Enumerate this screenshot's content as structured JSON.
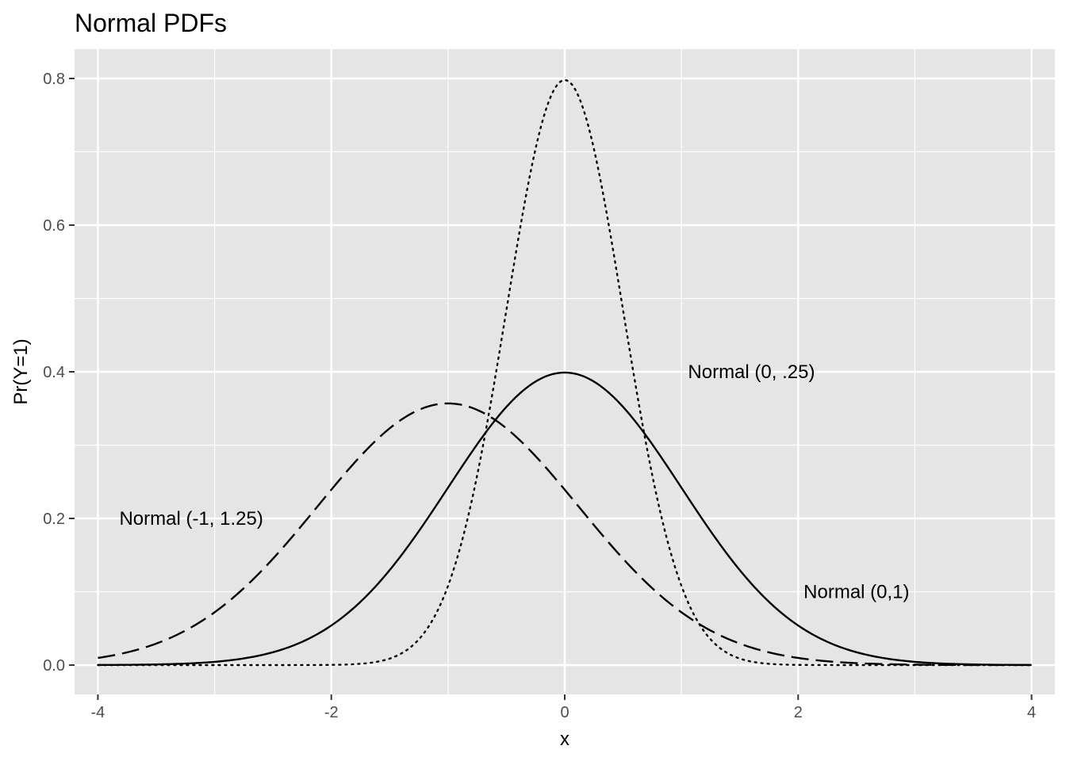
{
  "chart_data": {
    "type": "line",
    "title": "Normal PDFs",
    "xlabel": "x",
    "ylabel": "Pr(Y=1)",
    "xlim": [
      -4.2,
      4.2
    ],
    "ylim": [
      -0.04,
      0.84
    ],
    "x_ticks": [
      -4,
      -2,
      0,
      2,
      4
    ],
    "x_tick_labels": [
      "-4",
      "-2",
      "0",
      "2",
      "4"
    ],
    "y_ticks": [
      0.0,
      0.2,
      0.4,
      0.6,
      0.8
    ],
    "y_tick_labels": [
      "0.0",
      "0.2",
      "0.4",
      "0.6",
      "0.8"
    ],
    "grid": true,
    "legend": "none",
    "background": "#e5e5e5",
    "grid_color": "#ffffff",
    "line_color": "#000000",
    "series": [
      {
        "mean": 0,
        "sd": 1,
        "linetype": "solid",
        "label": "Normal (0,1)",
        "label_x": 2.5,
        "label_y": 0.1
      },
      {
        "mean": 0,
        "sd": 0.5,
        "linetype": "dotted",
        "label": "Normal (0, .25)",
        "label_x": 1.6,
        "label_y": 0.4
      },
      {
        "mean": -1,
        "sd": 1.118,
        "linetype": "dashed",
        "label": "Normal (-1, 1.25)",
        "label_x": -3.2,
        "label_y": 0.2
      }
    ]
  }
}
